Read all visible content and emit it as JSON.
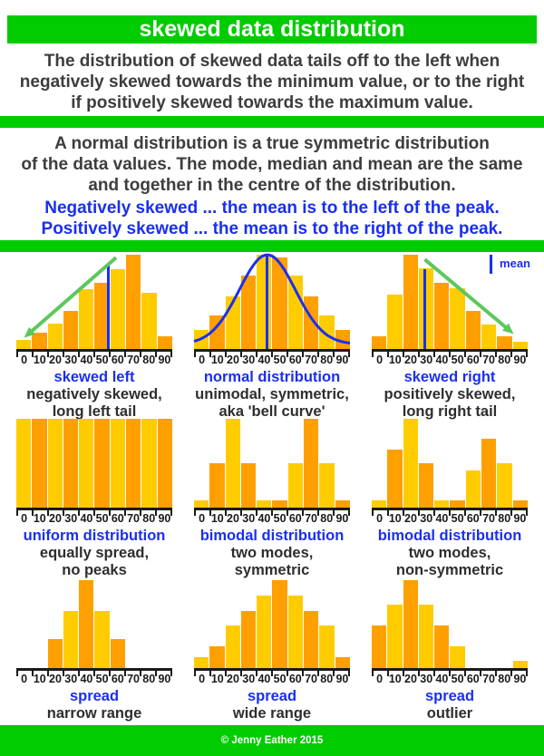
{
  "title_bar": {
    "text": "skewed data distribution",
    "background": "#00cc00",
    "text_color": "#ffffff"
  },
  "intro": {
    "text": "The distribution of skewed data tails off to the left when\nnegatively skewed towards the minimum value, or to the right\nif positively skewed towards the maximum value."
  },
  "normal_note": {
    "text": "A normal distribution is a true symmetric distribution\nof the data values. The mode, median and mean are the same\nand together in the centre of the distribution."
  },
  "skew_note": {
    "text": "Negatively skewed ... the mean is to the left of the peak.\nPositively skewed ... the mean is to the right of the peak."
  },
  "legend": {
    "label": "mean"
  },
  "footer": {
    "text": "© Jenny Eather 2015"
  },
  "colors": {
    "green_bar": "#00cc00",
    "bar_yellow": "#ffcc00",
    "bar_orange": "#ff9f00",
    "blue": "#1a2ff0",
    "arrow_green": "#5dc75d",
    "text_dark": "#3d3d3d",
    "axis_black": "#1a1a1a"
  },
  "axis_labels": [
    "0",
    "10",
    "20",
    "30",
    "40",
    "50",
    "60",
    "70",
    "80",
    "90"
  ],
  "chart_data": [
    {
      "type": "bar",
      "title": "skewed left",
      "subtitle": "negatively skewed,\nlong left tail",
      "values": [
        10,
        17,
        27,
        40,
        63,
        70,
        85,
        100,
        60,
        13
      ],
      "first_color": "yellow",
      "mean_line": {
        "pos_pct": 59,
        "height_pct": 88
      },
      "arrow": {
        "from": [
          64,
          3
        ],
        "to": [
          5,
          88
        ]
      },
      "ylim": [
        0,
        100
      ],
      "grid": false
    },
    {
      "type": "bar",
      "title": "normal distribution",
      "subtitle": "unimodal, symmetric,\naka 'bell curve'",
      "values": [
        20,
        36,
        56,
        78,
        100,
        97,
        78,
        56,
        36,
        20
      ],
      "first_color": "yellow",
      "mean_line": {
        "pos_pct": 47,
        "height_pct": 100
      },
      "bell_curve": {
        "center": 47,
        "sigma": 18,
        "base": 5,
        "peak": 100
      },
      "ylim": [
        0,
        100
      ],
      "grid": false
    },
    {
      "type": "bar",
      "title": "skewed right",
      "subtitle": "positively skewed,\nlong right tail",
      "values": [
        13,
        58,
        100,
        86,
        70,
        64,
        40,
        26,
        13,
        8
      ],
      "first_color": "orange",
      "mean_line": {
        "pos_pct": 34,
        "height_pct": 85
      },
      "arrow": {
        "from": [
          34,
          5
        ],
        "to": [
          91,
          84
        ]
      },
      "ylim": [
        0,
        100
      ],
      "grid": false
    },
    {
      "type": "bar",
      "title": "uniform distribution",
      "subtitle": "equally spread,\nno peaks",
      "values": [
        100,
        100,
        100,
        100,
        100,
        100,
        100,
        100,
        100,
        100
      ],
      "first_color": "yellow",
      "ylim": [
        0,
        100
      ],
      "grid": false
    },
    {
      "type": "bar",
      "title": "bimodal distribution",
      "subtitle": "two modes,\nsymmetric",
      "values": [
        8,
        50,
        100,
        50,
        8,
        8,
        50,
        100,
        50,
        8
      ],
      "first_color": "yellow",
      "ylim": [
        0,
        100
      ],
      "grid": false
    },
    {
      "type": "bar",
      "title": "bimodal distribution",
      "subtitle": "two modes,\nnon-symmetric",
      "values": [
        8,
        65,
        100,
        50,
        8,
        8,
        42,
        78,
        50,
        8
      ],
      "first_color": "yellow",
      "ylim": [
        0,
        100
      ],
      "grid": false
    },
    {
      "type": "bar",
      "title": "spread",
      "subtitle": "narrow range",
      "values": [
        0,
        0,
        33,
        65,
        100,
        65,
        33,
        0,
        0,
        0
      ],
      "first_color": "orange",
      "ylim": [
        0,
        100
      ],
      "grid": false
    },
    {
      "type": "bar",
      "title": "spread",
      "subtitle": "wide range",
      "values": [
        12,
        25,
        48,
        65,
        82,
        100,
        82,
        65,
        48,
        12
      ],
      "first_color": "yellow",
      "ylim": [
        0,
        100
      ],
      "grid": false
    },
    {
      "type": "bar",
      "title": "spread",
      "subtitle": "outlier",
      "values": [
        48,
        72,
        100,
        72,
        48,
        25,
        0,
        0,
        0,
        8
      ],
      "first_color": "orange",
      "ylim": [
        0,
        100
      ],
      "grid": false
    }
  ]
}
